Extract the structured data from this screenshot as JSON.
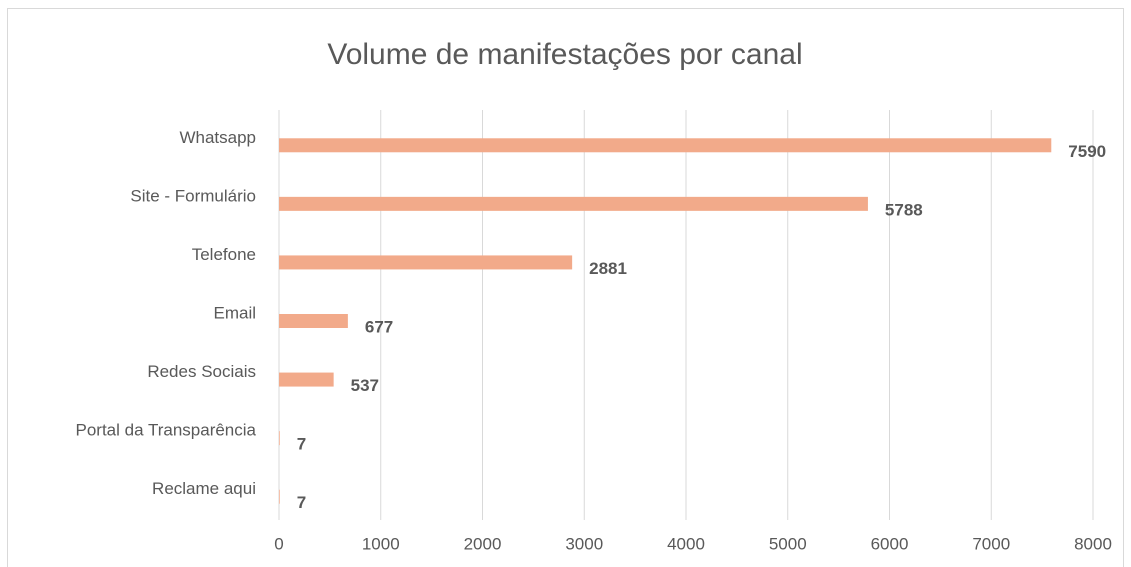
{
  "chart_data": {
    "type": "bar",
    "orientation": "horizontal",
    "title": "Volume de manifestações por canal",
    "categories": [
      "Whatsapp",
      "Site - Formulário",
      "Telefone",
      "Email",
      "Redes Sociais",
      "Portal da Transparência",
      "Reclame aqui"
    ],
    "values": [
      7590,
      5788,
      2881,
      677,
      537,
      7,
      7
    ],
    "color": "#f2aa8a",
    "xlim": [
      0,
      8000
    ],
    "xticks": [
      0,
      1000,
      2000,
      3000,
      4000,
      5000,
      6000,
      7000,
      8000
    ],
    "grid": true
  }
}
